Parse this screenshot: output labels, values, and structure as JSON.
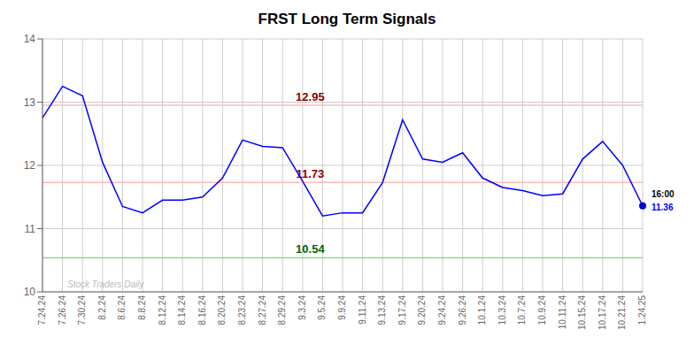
{
  "chart_data": {
    "type": "line",
    "title": "FRST Long Term Signals",
    "categories": [
      "7.24.24",
      "7.26.24",
      "7.30.24",
      "8.2.24",
      "8.6.24",
      "8.8.24",
      "8.12.24",
      "8.14.24",
      "8.16.24",
      "8.20.24",
      "8.23.24",
      "8.27.24",
      "8.29.24",
      "9.3.24",
      "9.5.24",
      "9.9.24",
      "9.11.24",
      "9.13.24",
      "9.17.24",
      "9.20.24",
      "9.24.24",
      "9.26.24",
      "10.1.24",
      "10.3.24",
      "10.7.24",
      "10.9.24",
      "10.11.24",
      "10.15.24",
      "10.17.24",
      "10.21.24",
      "1.24.25"
    ],
    "values": [
      12.75,
      13.25,
      13.1,
      12.05,
      11.35,
      11.25,
      11.45,
      11.45,
      11.5,
      11.8,
      12.4,
      12.3,
      12.28,
      11.75,
      11.2,
      11.25,
      11.25,
      11.73,
      12.72,
      12.1,
      12.05,
      12.2,
      11.8,
      11.65,
      11.6,
      11.52,
      11.55,
      12.1,
      12.38,
      12.0,
      11.36
    ],
    "color": "#0000ff",
    "ylim": [
      10,
      14
    ],
    "yticks": [
      10,
      11,
      12,
      13,
      14
    ],
    "grid": true,
    "reference_lines": [
      {
        "value": 12.95,
        "color": "#ffbbbb",
        "label": "12.95",
        "label_color": "#8b0000"
      },
      {
        "value": 11.73,
        "color": "#ffbbbb",
        "label": "11.73",
        "label_color": "#8b0000"
      },
      {
        "value": 10.54,
        "color": "#88dd88",
        "label": "10.54",
        "label_color": "#006400"
      }
    ],
    "last_point": {
      "value": 11.36,
      "color": "#0000cc"
    },
    "annotations": [
      {
        "text": "16:00",
        "color": "#000000"
      },
      {
        "text": "11.36",
        "color": "#0000ff"
      }
    ],
    "watermark": "Stock Traders Daily"
  }
}
